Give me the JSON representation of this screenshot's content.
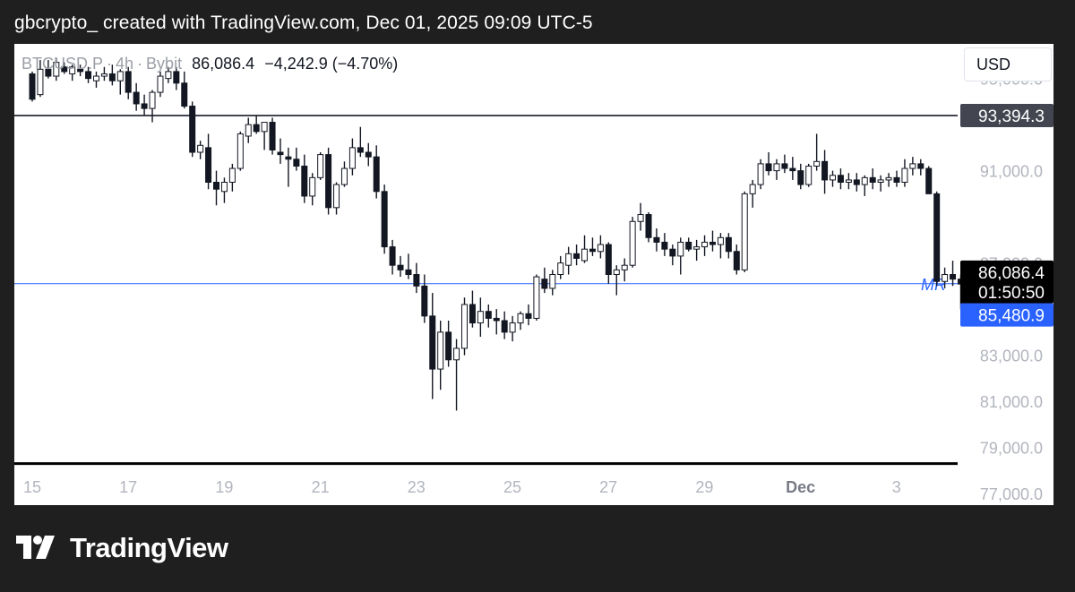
{
  "header": {
    "text": "gbcrypto_ created with TradingView.com, Dec 01, 2025 09:09 UTC-5"
  },
  "legend": {
    "symbol": "BTCUSD.P",
    "interval": "4h",
    "exchange": "Bybit",
    "last": "86,086.4",
    "change": "−4,242.9 (−4.70%)"
  },
  "currency_button": "USD",
  "footer": {
    "brand": "TradingView",
    "logo_icon": "tradingview-logo-icon"
  },
  "colors": {
    "candle_body": "#131722",
    "candle_up_fill": "#ffffff",
    "mr_line": "#2962ff",
    "resistance_line": "#434651",
    "support_line": "#000000",
    "label_dark": "#434651",
    "label_last": "#000000",
    "label_blue": "#2962ff"
  },
  "chart_data": {
    "type": "candlestick",
    "symbol": "BTCUSD.P",
    "interval": "4h",
    "exchange": "Bybit",
    "y_axis": {
      "range": [
        76500,
        96500
      ],
      "ticks": [
        95000.0,
        91000.0,
        87000.0,
        83000.0,
        81000.0,
        79000.0,
        77000.0
      ],
      "tick_labels": [
        "95,000.0",
        "91,000.0",
        "87,000.0",
        "83,000.0",
        "81,000.0",
        "79,000.0",
        "77,000.0"
      ]
    },
    "x_axis": {
      "tick_labels": [
        "15",
        "17",
        "19",
        "21",
        "23",
        "25",
        "27",
        "29",
        "Dec",
        "3"
      ],
      "tick_days": [
        15,
        17,
        19,
        21,
        23,
        25,
        27,
        29,
        31,
        33
      ]
    },
    "horizontal_lines": [
      {
        "price": 93394.3,
        "color": "#434651",
        "width": 2
      },
      {
        "price": 78300,
        "color": "#000000",
        "width": 3
      },
      {
        "price": 86100,
        "color": "#2962ff",
        "width": 1,
        "label": "MR"
      }
    ],
    "price_labels": [
      {
        "text": "93,394.3",
        "price": 93394.3,
        "bg": "#434651",
        "fg": "#ffffff"
      },
      {
        "text": "86,086.4",
        "price": 86600,
        "bg": "#000000",
        "fg": "#ffffff"
      },
      {
        "text": "01:50:50",
        "price": 85750,
        "bg": "#000000",
        "fg": "#ffffff"
      },
      {
        "text": "85,480.9",
        "price": 84750,
        "bg": "#2962ff",
        "fg": "#ffffff"
      }
    ],
    "candles_start_day": 15.0,
    "candle_step_days": 0.1667,
    "candles": [
      [
        95200,
        95300,
        94000,
        94100
      ],
      [
        94300,
        95800,
        94200,
        95400
      ],
      [
        95400,
        95800,
        95000,
        95100
      ],
      [
        95100,
        95900,
        94900,
        95700
      ],
      [
        95500,
        95700,
        95200,
        95300
      ],
      [
        95200,
        95600,
        94900,
        95500
      ],
      [
        95400,
        95600,
        95100,
        95300
      ],
      [
        95300,
        95500,
        94800,
        95000
      ],
      [
        94900,
        95300,
        94600,
        95100
      ],
      [
        95100,
        95500,
        94900,
        95200
      ],
      [
        95200,
        95600,
        94700,
        94900
      ],
      [
        94900,
        95400,
        94300,
        95300
      ],
      [
        95300,
        95500,
        94100,
        94400
      ],
      [
        94400,
        94800,
        93600,
        93900
      ],
      [
        93900,
        94300,
        93400,
        93700
      ],
      [
        93700,
        94500,
        93100,
        94400
      ],
      [
        94400,
        95300,
        94200,
        95100
      ],
      [
        95000,
        95500,
        94800,
        95300
      ],
      [
        95300,
        95500,
        94500,
        94800
      ],
      [
        94800,
        95300,
        93700,
        93800
      ],
      [
        93800,
        94000,
        91600,
        91800
      ],
      [
        91800,
        92300,
        91500,
        92100
      ],
      [
        92000,
        92600,
        90200,
        90500
      ],
      [
        90500,
        91000,
        89500,
        90200
      ],
      [
        90100,
        90700,
        89600,
        90500
      ],
      [
        90500,
        91300,
        90100,
        91100
      ],
      [
        91100,
        92700,
        91000,
        92600
      ],
      [
        92500,
        93300,
        92200,
        93000
      ],
      [
        93000,
        93400,
        92600,
        92700
      ],
      [
        92700,
        93100,
        91900,
        93100
      ],
      [
        93100,
        93300,
        91700,
        91900
      ],
      [
        91800,
        92400,
        91300,
        91700
      ],
      [
        91600,
        92000,
        90300,
        91500
      ],
      [
        91500,
        92000,
        91000,
        91200
      ],
      [
        91200,
        91700,
        89600,
        89900
      ],
      [
        89900,
        90900,
        89500,
        90700
      ],
      [
        90700,
        91800,
        90600,
        91700
      ],
      [
        91700,
        92000,
        89100,
        89400
      ],
      [
        89400,
        90500,
        89100,
        90400
      ],
      [
        90400,
        91400,
        90300,
        91100
      ],
      [
        91100,
        92400,
        90800,
        92000
      ],
      [
        92000,
        92900,
        91600,
        91800
      ],
      [
        91800,
        92200,
        91200,
        91600
      ],
      [
        91600,
        92100,
        89800,
        90100
      ],
      [
        90100,
        90400,
        87400,
        87700
      ],
      [
        87700,
        88000,
        86500,
        86900
      ],
      [
        86900,
        87300,
        86400,
        86700
      ],
      [
        86700,
        87400,
        86300,
        86500
      ],
      [
        86500,
        87000,
        85700,
        86000
      ],
      [
        86000,
        86500,
        84400,
        84700
      ],
      [
        84700,
        85700,
        81100,
        82400
      ],
      [
        82400,
        84500,
        81500,
        84000
      ],
      [
        84000,
        84500,
        82500,
        82800
      ],
      [
        82800,
        83700,
        80600,
        83300
      ],
      [
        83300,
        85500,
        83000,
        85200
      ],
      [
        85200,
        85800,
        84200,
        84400
      ],
      [
        84400,
        85500,
        83800,
        84900
      ],
      [
        84900,
        85200,
        84200,
        84600
      ],
      [
        84600,
        85000,
        83900,
        84500
      ],
      [
        84500,
        84900,
        83700,
        84000
      ],
      [
        84000,
        84700,
        83600,
        84400
      ],
      [
        84400,
        84900,
        84100,
        84800
      ],
      [
        84800,
        85200,
        84300,
        84600
      ],
      [
        84600,
        86500,
        84500,
        86400
      ],
      [
        86300,
        86800,
        85700,
        85900
      ],
      [
        85900,
        86700,
        85600,
        86500
      ],
      [
        86500,
        87300,
        86300,
        87000
      ],
      [
        86900,
        87700,
        86500,
        87400
      ],
      [
        87400,
        87800,
        86900,
        87200
      ],
      [
        87100,
        88200,
        87000,
        87600
      ],
      [
        87600,
        88100,
        87300,
        87500
      ],
      [
        87500,
        88200,
        87200,
        87800
      ],
      [
        87800,
        87900,
        86100,
        86500
      ],
      [
        86500,
        86900,
        85600,
        86700
      ],
      [
        86700,
        87200,
        86200,
        86900
      ],
      [
        86900,
        89000,
        86800,
        88800
      ],
      [
        88800,
        89600,
        88400,
        89100
      ],
      [
        89100,
        89200,
        87900,
        88100
      ],
      [
        88100,
        88500,
        87500,
        87900
      ],
      [
        87900,
        88300,
        87300,
        87600
      ],
      [
        87600,
        87800,
        86900,
        87300
      ],
      [
        87300,
        88100,
        86500,
        87900
      ],
      [
        87900,
        88100,
        87500,
        87600
      ],
      [
        87600,
        88000,
        87100,
        87700
      ],
      [
        87700,
        88200,
        87300,
        87900
      ],
      [
        87900,
        88400,
        87500,
        87800
      ],
      [
        87800,
        88300,
        87200,
        88100
      ],
      [
        88100,
        88300,
        87200,
        87500
      ],
      [
        87500,
        87800,
        86500,
        86700
      ],
      [
        86700,
        90100,
        86600,
        90000
      ],
      [
        90000,
        90600,
        89400,
        90400
      ],
      [
        90400,
        91500,
        90200,
        91300
      ],
      [
        91300,
        91800,
        90800,
        91000
      ],
      [
        91000,
        91500,
        90600,
        91300
      ],
      [
        91300,
        91700,
        90900,
        91100
      ],
      [
        91100,
        91600,
        90600,
        91000
      ],
      [
        91000,
        91300,
        90200,
        90400
      ],
      [
        90400,
        91300,
        90300,
        91200
      ],
      [
        91200,
        92600,
        91000,
        91400
      ],
      [
        91400,
        91900,
        90000,
        90600
      ],
      [
        90600,
        91000,
        90300,
        90800
      ],
      [
        90800,
        91100,
        90200,
        90500
      ],
      [
        90500,
        90900,
        90200,
        90600
      ],
      [
        90600,
        90900,
        90100,
        90400
      ],
      [
        90400,
        90800,
        89900,
        90700
      ],
      [
        90700,
        91100,
        90200,
        90500
      ],
      [
        90500,
        90800,
        90100,
        90600
      ],
      [
        90600,
        90900,
        90300,
        90700
      ],
      [
        90700,
        91000,
        90300,
        90500
      ],
      [
        90500,
        91500,
        90300,
        91100
      ],
      [
        91100,
        91600,
        90800,
        91300
      ],
      [
        91300,
        91500,
        90800,
        91100
      ],
      [
        91100,
        91200,
        90000,
        90000
      ],
      [
        90000,
        90100,
        86000,
        86200
      ],
      [
        86200,
        86800,
        85900,
        86500
      ],
      [
        86500,
        87100,
        86000,
        86300
      ],
      [
        86300,
        86500,
        85000,
        86086.4
      ]
    ]
  }
}
